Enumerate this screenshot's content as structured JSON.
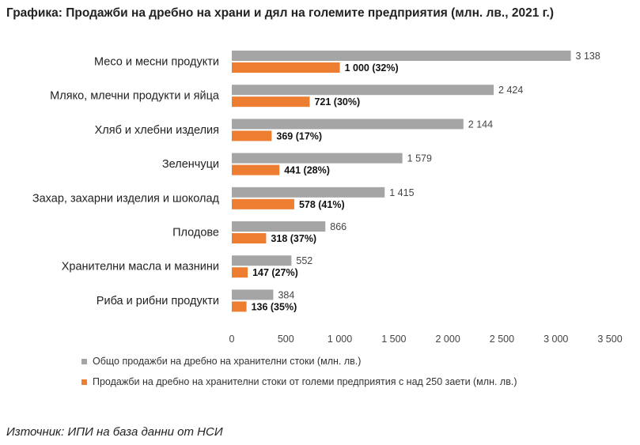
{
  "title": "Графика: Продажби на дребно на храни и дял на големите предприятия (млн. лв., 2021 г.)",
  "source": "Източник: ИПИ на база данни от НСИ",
  "colors": {
    "total": "#a5a5a5",
    "large": "#ed7d31"
  },
  "chart_data": {
    "type": "bar",
    "orientation": "horizontal",
    "categories": [
      "Месо и месни продукти",
      "Мляко, млечни продукти и яйца",
      "Хляб и хлебни изделия",
      "Зеленчуци",
      "Захар, захарни изделия и шоколад",
      "Плодове",
      "Хранителни масла и мазнини",
      "Риба и рибни продукти"
    ],
    "series": [
      {
        "name": "Общо продажби на дребно на хранителни стоки (млн. лв.)",
        "values": [
          3138,
          2424,
          2144,
          1579,
          1415,
          866,
          552,
          384
        ],
        "labels": [
          "3 138",
          "2 424",
          "2 144",
          "1 579",
          "1 415",
          "866",
          "552",
          "384"
        ]
      },
      {
        "name": "Продажби на дребно на хранителни стоки от големи предприятия с над 250 заети (млн. лв.)",
        "values": [
          1000,
          721,
          369,
          441,
          578,
          318,
          147,
          136
        ],
        "labels": [
          "1 000 (32%)",
          "721 (30%)",
          "369 (17%)",
          "441 (28%)",
          "578 (41%)",
          "318 (37%)",
          "147 (27%)",
          "136 (35%)"
        ]
      }
    ],
    "xlim": [
      0,
      3500
    ],
    "xticks": [
      0,
      500,
      1000,
      1500,
      2000,
      2500,
      3000,
      3500
    ],
    "xtick_labels": [
      "0",
      "500",
      "1 000",
      "1 500",
      "2 000",
      "2 500",
      "3 000",
      "3 500"
    ],
    "grid": false,
    "legend_position": "bottom"
  }
}
